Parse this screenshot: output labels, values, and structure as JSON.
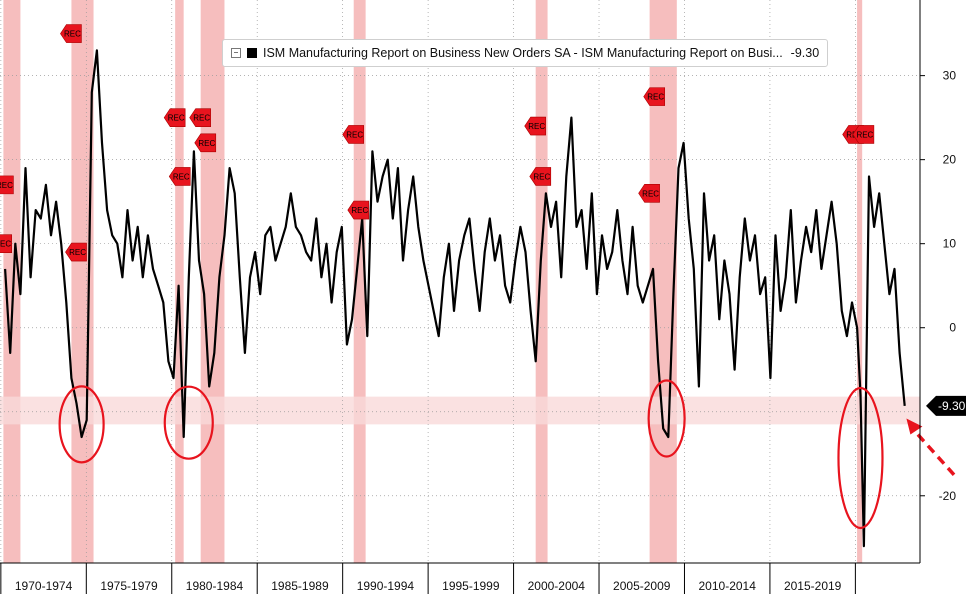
{
  "chart_data": {
    "type": "line",
    "legend": {
      "label": "ISM Manufacturing Report on Business New Orders SA - ISM Manufacturing Report on Busi...",
      "value": "-9.30"
    },
    "last_value_label": "-9.30",
    "rec_label": "REC",
    "colors": {
      "line": "#000000",
      "recession": "#f5b3b3",
      "highlight_band": "#f9d9d9",
      "annotation": "#e8141e",
      "dot": "#d98a2b"
    },
    "x_tick_labels": [
      "1970-1974",
      "1975-1979",
      "1980-1984",
      "1985-1989",
      "1990-1994",
      "1995-1999",
      "2000-2004",
      "2005-2009",
      "2010-2014",
      "2015-2019"
    ],
    "y_ticks": [
      30,
      20,
      10,
      0,
      -10,
      -20
    ],
    "y_tick_labels": [
      "30",
      "20",
      "10",
      "0",
      "-20"
    ],
    "xlim": [
      1969.7,
      2023.8
    ],
    "ylim": [
      -28,
      39
    ],
    "highlight_band": [
      -8.2,
      -11.5
    ],
    "recessions": [
      [
        1969.9,
        1970.9
      ],
      [
        1973.9,
        1975.2
      ],
      [
        1980.0,
        1980.5
      ],
      [
        1981.5,
        1982.9
      ],
      [
        1990.5,
        1991.2
      ],
      [
        2001.2,
        2001.9
      ],
      [
        2007.9,
        2009.5
      ],
      [
        2020.1,
        2020.4
      ]
    ],
    "rec_flags": [
      [
        1969.9,
        17
      ],
      [
        1969.8,
        10
      ],
      [
        1973.9,
        35
      ],
      [
        1974.2,
        9
      ],
      [
        1980.0,
        25
      ],
      [
        1980.3,
        18
      ],
      [
        1981.5,
        25
      ],
      [
        1981.8,
        22
      ],
      [
        1990.5,
        23
      ],
      [
        1990.8,
        14
      ],
      [
        2001.2,
        24
      ],
      [
        2001.5,
        18
      ],
      [
        2007.9,
        16
      ],
      [
        2008.2,
        27.5
      ],
      [
        2019.9,
        23
      ],
      [
        2020.5,
        23
      ]
    ],
    "x": [
      1970.0,
      1970.3,
      1970.6,
      1970.9,
      1971.2,
      1971.5,
      1971.8,
      1972.1,
      1972.4,
      1972.7,
      1973.0,
      1973.3,
      1973.6,
      1973.9,
      1974.2,
      1974.5,
      1974.8,
      1975.1,
      1975.4,
      1975.7,
      1976.0,
      1976.3,
      1976.6,
      1976.9,
      1977.2,
      1977.5,
      1977.8,
      1978.1,
      1978.4,
      1978.7,
      1979.0,
      1979.3,
      1979.6,
      1979.9,
      1980.2,
      1980.5,
      1980.8,
      1981.1,
      1981.4,
      1981.7,
      1982.0,
      1982.3,
      1982.6,
      1982.9,
      1983.2,
      1983.5,
      1983.8,
      1984.1,
      1984.4,
      1984.7,
      1985.0,
      1985.3,
      1985.6,
      1985.9,
      1986.2,
      1986.5,
      1986.8,
      1987.1,
      1987.4,
      1987.7,
      1988.0,
      1988.3,
      1988.6,
      1988.9,
      1989.2,
      1989.5,
      1989.8,
      1990.1,
      1990.4,
      1990.7,
      1991.0,
      1991.3,
      1991.6,
      1991.9,
      1992.2,
      1992.5,
      1992.8,
      1993.1,
      1993.4,
      1993.7,
      1994.0,
      1994.3,
      1994.6,
      1994.9,
      1995.2,
      1995.5,
      1995.8,
      1996.1,
      1996.4,
      1996.7,
      1997.0,
      1997.3,
      1997.6,
      1997.9,
      1998.2,
      1998.5,
      1998.8,
      1999.1,
      1999.4,
      1999.7,
      2000.0,
      2000.3,
      2000.6,
      2000.9,
      2001.2,
      2001.5,
      2001.8,
      2002.1,
      2002.4,
      2002.7,
      2003.0,
      2003.3,
      2003.6,
      2003.9,
      2004.2,
      2004.5,
      2004.8,
      2005.1,
      2005.4,
      2005.7,
      2006.0,
      2006.3,
      2006.6,
      2006.9,
      2007.2,
      2007.5,
      2007.8,
      2008.1,
      2008.4,
      2008.7,
      2009.0,
      2009.3,
      2009.6,
      2009.9,
      2010.2,
      2010.5,
      2010.8,
      2011.1,
      2011.4,
      2011.7,
      2012.0,
      2012.3,
      2012.6,
      2012.9,
      2013.2,
      2013.5,
      2013.8,
      2014.1,
      2014.4,
      2014.7,
      2015.0,
      2015.3,
      2015.6,
      2015.9,
      2016.2,
      2016.5,
      2016.8,
      2017.1,
      2017.4,
      2017.7,
      2018.0,
      2018.3,
      2018.6,
      2018.9,
      2019.2,
      2019.5,
      2019.8,
      2020.1,
      2020.3,
      2020.5,
      2020.8,
      2021.1,
      2021.4,
      2021.7,
      2022.0,
      2022.3,
      2022.6,
      2022.9
    ],
    "values": [
      7,
      -3,
      10,
      4,
      19,
      6,
      14,
      13,
      17,
      11,
      15,
      10,
      3,
      -6,
      -9,
      -13,
      -11,
      28,
      33,
      22,
      14,
      11,
      10,
      6,
      14,
      8,
      12,
      6,
      11,
      7,
      5,
      3,
      -4,
      -6,
      5,
      -13,
      6,
      21,
      8,
      4,
      -7,
      -3,
      6,
      11,
      19,
      16,
      6,
      -3,
      6,
      9,
      4,
      11,
      12,
      8,
      10,
      12,
      16,
      12,
      11,
      9,
      8,
      13,
      6,
      10,
      3,
      9,
      12,
      -2,
      1,
      7,
      13,
      -1,
      21,
      15,
      18,
      20,
      13,
      19,
      8,
      14,
      18,
      12,
      8,
      5,
      2,
      -1,
      6,
      10,
      2,
      8,
      11,
      13,
      7,
      2,
      9,
      13,
      8,
      11,
      5,
      3,
      8,
      12,
      9,
      2,
      -4,
      8,
      16,
      12,
      15,
      6,
      18,
      25,
      12,
      14,
      7,
      16,
      4,
      11,
      7,
      9,
      14,
      8,
      4,
      12,
      5,
      3,
      5,
      7,
      -4,
      -12,
      -13,
      4,
      19,
      22,
      13,
      7,
      -7,
      16,
      8,
      11,
      1,
      8,
      4,
      -5,
      6,
      13,
      8,
      11,
      4,
      6,
      -6,
      11,
      2,
      6,
      14,
      3,
      8,
      12,
      9,
      14,
      7,
      11,
      15,
      10,
      2,
      -1,
      3,
      0,
      -8,
      -26,
      18,
      12,
      16,
      10,
      4,
      7,
      -3,
      -9.3
    ]
  }
}
